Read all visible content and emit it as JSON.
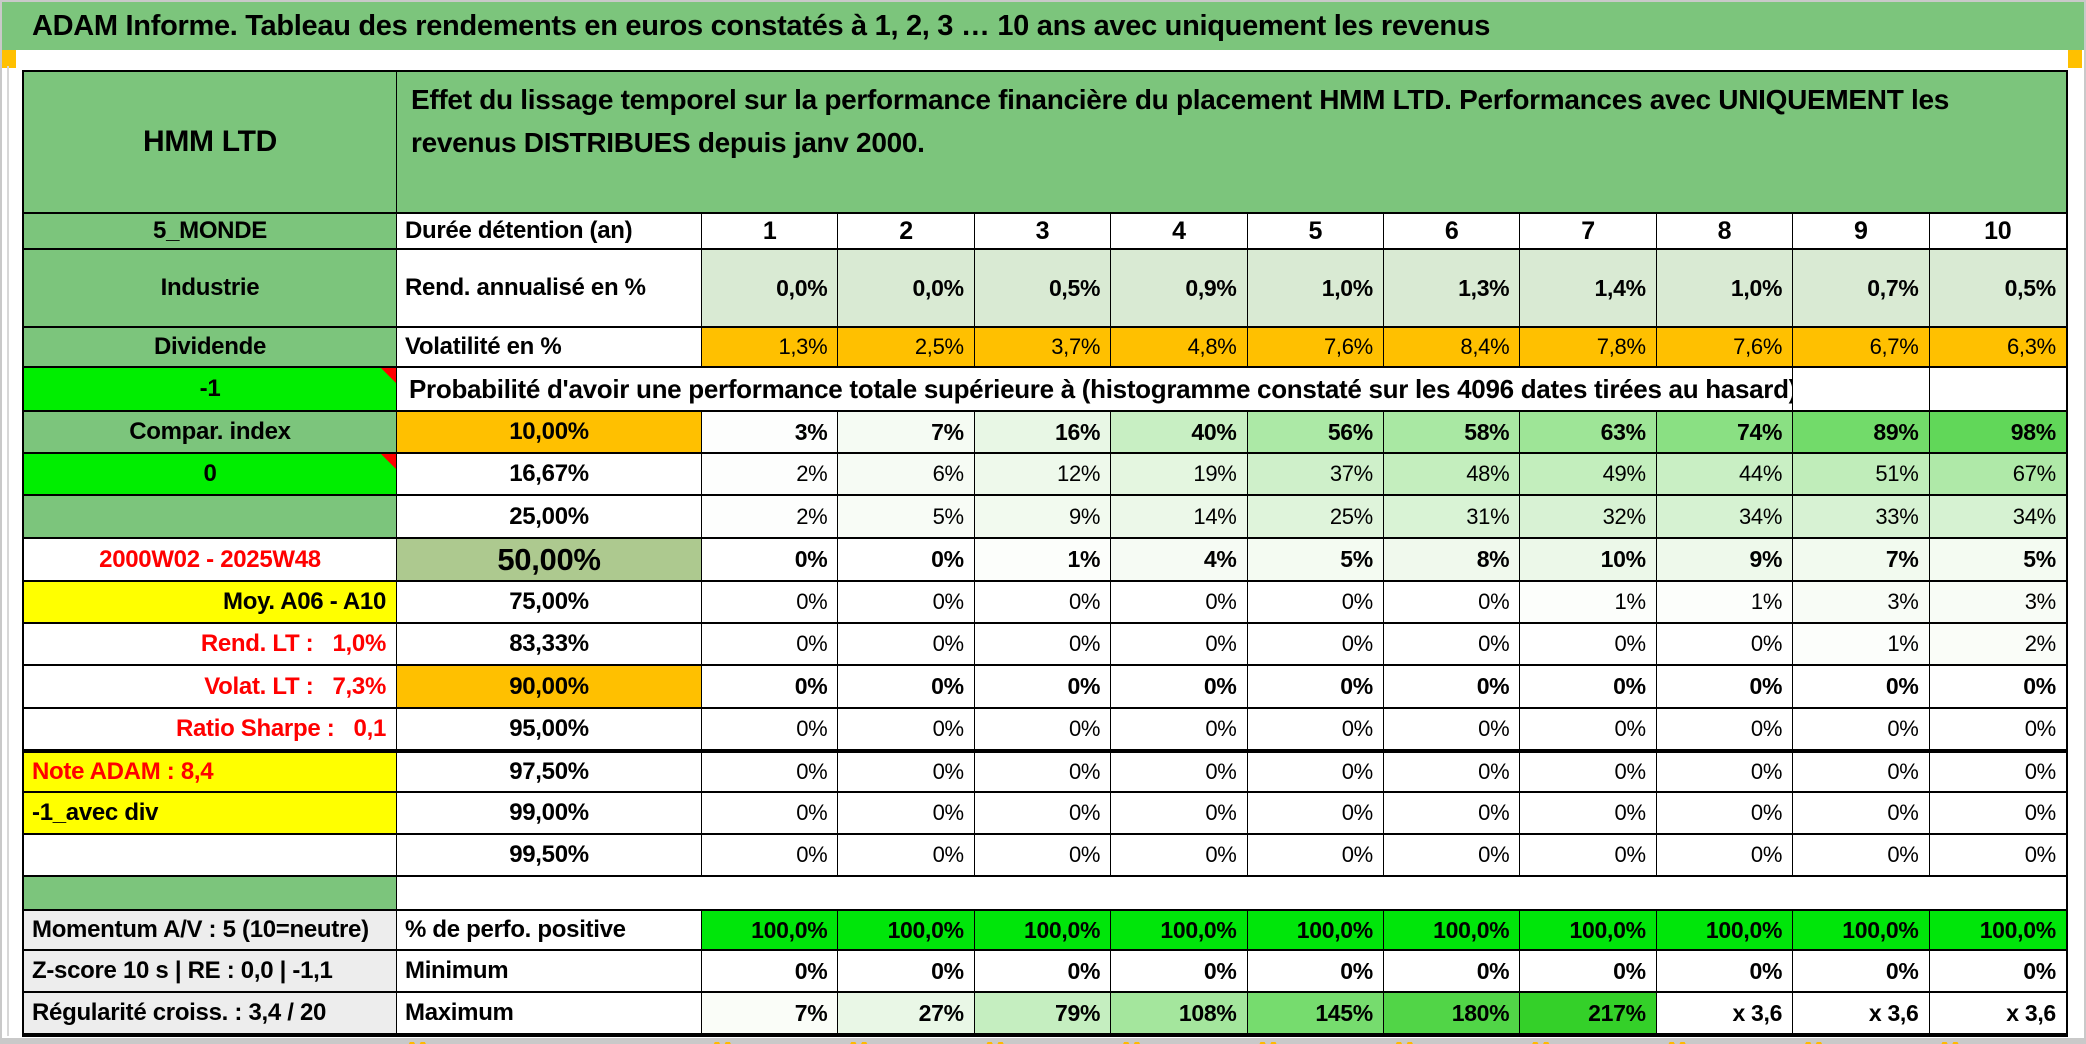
{
  "banner": {
    "title": "ADAM Informe. Tableau des rendements en euros constatés à 1, 2, 3 … 10 ans avec uniquement les revenus"
  },
  "colors": {
    "banner_green": "#7CC57C",
    "label_green": "#7CC57C",
    "bright_green": "#00EE00",
    "perfo_green": "#00E60A",
    "orange": "#FFC000",
    "yellow": "#FFFF00",
    "olive": "#ADC98F",
    "gray_label": "#EDEDED",
    "light_green_fill": "#D9EAD3",
    "red_text": "#FF0000",
    "mark_orange": "#FFB900"
  },
  "hidden_row_marks": "▲▲",
  "table": {
    "corner_title": "HMM LTD",
    "description": "Effet du lissage temporel sur la performance financière du placement HMM LTD. Performances avec UNIQUEMENT les revenus DISTRIBUES depuis janv 2000.",
    "duration": {
      "side": "5_MONDE",
      "label": "Durée détention (an)",
      "years": [
        "1",
        "2",
        "3",
        "4",
        "5",
        "6",
        "7",
        "8",
        "9",
        "10"
      ]
    },
    "rows": [
      {
        "id": "rend",
        "side": "Industrie",
        "side_style": "green",
        "label": "Rend. annualisé en %",
        "label_style": "left",
        "bold": true,
        "values": [
          "0,0%",
          "0,0%",
          "0,5%",
          "0,9%",
          "1,0%",
          "1,3%",
          "1,4%",
          "1,0%",
          "0,7%",
          "0,5%"
        ],
        "fills": [
          "#D9EAD3",
          "#D9EAD3",
          "#D9EAD3",
          "#D9EAD3",
          "#D9EAD3",
          "#D9EAD3",
          "#D9EAD3",
          "#D9EAD3",
          "#D9EAD3",
          "#D9EAD3"
        ]
      },
      {
        "id": "volat",
        "side": "Dividende",
        "side_style": "green",
        "label": "Volatilité en %",
        "label_style": "left",
        "bold": false,
        "values": [
          "1,3%",
          "2,5%",
          "3,7%",
          "4,8%",
          "7,6%",
          "8,4%",
          "7,8%",
          "7,6%",
          "6,7%",
          "6,3%"
        ],
        "fills": [
          "#FFC000",
          "#FFC000",
          "#FFC000",
          "#FFC000",
          "#FFC000",
          "#FFC000",
          "#FFC000",
          "#FFC000",
          "#FFC000",
          "#FFC000"
        ]
      },
      {
        "id": "proba",
        "side": "-1",
        "side_style": "bright",
        "marker": true,
        "merged_text": "Probabilité d'avoir une performance totale supérieure à (histogramme constaté sur les 4096 dates tirées au hasard)"
      },
      {
        "id": "p10",
        "side": "Compar. index",
        "side_style": "green",
        "label": "10,00%",
        "label_style": "orange",
        "bold": true,
        "values": [
          "3%",
          "7%",
          "16%",
          "40%",
          "56%",
          "58%",
          "63%",
          "74%",
          "89%",
          "98%"
        ],
        "fills": [
          "#FDFEFD",
          "#F5FBF3",
          "#E8F7E5",
          "#C8EFC3",
          "#ACE9A6",
          "#A9E8A3",
          "#9EE597",
          "#8AE083",
          "#72DB6A",
          "#61D759"
        ]
      },
      {
        "id": "p1667",
        "side": "0",
        "side_style": "bright",
        "marker": true,
        "label": "16,67%",
        "label_style": "center",
        "bold": false,
        "values": [
          "2%",
          "6%",
          "12%",
          "19%",
          "37%",
          "48%",
          "49%",
          "44%",
          "51%",
          "67%"
        ],
        "fills": [
          "#FDFEFD",
          "#F6FBF4",
          "#EEF9EB",
          "#E4F6E0",
          "#CFF0CA",
          "#C4EEBE",
          "#C3EEBD",
          "#C9EFC4",
          "#C0EDBA",
          "#AFE9A8"
        ]
      },
      {
        "id": "p25",
        "side": "",
        "side_style": "green",
        "label": "25,00%",
        "label_style": "center",
        "bold": false,
        "values": [
          "2%",
          "5%",
          "9%",
          "14%",
          "25%",
          "31%",
          "32%",
          "34%",
          "33%",
          "34%"
        ],
        "fills": [
          "#FDFEFD",
          "#F8FCF6",
          "#F2FAEF",
          "#ECF8E9",
          "#DFF4DB",
          "#D9F3D5",
          "#D8F2D4",
          "#D6F2D2",
          "#D7F2D3",
          "#D6F2D2"
        ]
      },
      {
        "id": "p50",
        "side": "2000W02 - 2025W48",
        "side_style": "red-center",
        "label": "50,00%",
        "label_style": "olive",
        "bold": true,
        "values": [
          "0%",
          "0%",
          "1%",
          "4%",
          "5%",
          "8%",
          "10%",
          "9%",
          "7%",
          "5%"
        ],
        "fills": [
          "#FFFFFF",
          "#FFFFFF",
          "#FCFEFB",
          "#F6FBF4",
          "#F4FBF2",
          "#F0F9ED",
          "#ECF8E9",
          "#EEF9EB",
          "#F2FAEF",
          "#F4FBF2"
        ]
      },
      {
        "id": "p75",
        "side": "Moy. A06 - A10",
        "side_style": "yellow-right",
        "label": "75,00%",
        "label_style": "center",
        "bold": false,
        "values": [
          "0%",
          "0%",
          "0%",
          "0%",
          "0%",
          "0%",
          "1%",
          "1%",
          "3%",
          "3%"
        ],
        "fills": [
          "#FFFFFF",
          "#FFFFFF",
          "#FFFFFF",
          "#FFFFFF",
          "#FFFFFF",
          "#FFFFFF",
          "#FCFEFB",
          "#FCFEFB",
          "#F8FCF6",
          "#F8FCF6"
        ]
      },
      {
        "id": "p8333",
        "side": "Rend. LT :   1,0%",
        "side_style": "red-right",
        "label": "83,33%",
        "label_style": "center",
        "bold": false,
        "values": [
          "0%",
          "0%",
          "0%",
          "0%",
          "0%",
          "0%",
          "0%",
          "0%",
          "1%",
          "2%"
        ],
        "fills": [
          "#FFFFFF",
          "#FFFFFF",
          "#FFFFFF",
          "#FFFFFF",
          "#FFFFFF",
          "#FFFFFF",
          "#FFFFFF",
          "#FFFFFF",
          "#FCFEFB",
          "#FAFDF8"
        ]
      },
      {
        "id": "p90",
        "side": "Volat. LT :   7,3%",
        "side_style": "red-right",
        "label": "90,00%",
        "label_style": "orange",
        "bold": true,
        "values": [
          "0%",
          "0%",
          "0%",
          "0%",
          "0%",
          "0%",
          "0%",
          "0%",
          "0%",
          "0%"
        ],
        "fills": [
          "#FFFFFF",
          "#FFFFFF",
          "#FFFFFF",
          "#FFFFFF",
          "#FFFFFF",
          "#FFFFFF",
          "#FFFFFF",
          "#FFFFFF",
          "#FFFFFF",
          "#FFFFFF"
        ]
      },
      {
        "id": "p95",
        "side": "Ratio Sharpe :   0,1",
        "side_style": "red-right",
        "label": "95,00%",
        "label_style": "center",
        "bold": false,
        "values": [
          "0%",
          "0%",
          "0%",
          "0%",
          "0%",
          "0%",
          "0%",
          "0%",
          "0%",
          "0%"
        ],
        "fills": [
          "#FFFFFF",
          "#FFFFFF",
          "#FFFFFF",
          "#FFFFFF",
          "#FFFFFF",
          "#FFFFFF",
          "#FFFFFF",
          "#FFFFFF",
          "#FFFFFF",
          "#FFFFFF"
        ]
      },
      {
        "id": "p975",
        "side": "Note ADAM : 8,4",
        "side_style": "yellow-left-red",
        "label": "97,50%",
        "label_style": "center",
        "bold": false,
        "thick_top": true,
        "values": [
          "0%",
          "0%",
          "0%",
          "0%",
          "0%",
          "0%",
          "0%",
          "0%",
          "0%",
          "0%"
        ],
        "fills": [
          "#FFFFFF",
          "#FFFFFF",
          "#FFFFFF",
          "#FFFFFF",
          "#FFFFFF",
          "#FFFFFF",
          "#FFFFFF",
          "#FFFFFF",
          "#FFFFFF",
          "#FFFFFF"
        ]
      },
      {
        "id": "p99",
        "side": "-1_avec div",
        "side_style": "yellow-left",
        "label": "99,00%",
        "label_style": "center",
        "bold": false,
        "values": [
          "0%",
          "0%",
          "0%",
          "0%",
          "0%",
          "0%",
          "0%",
          "0%",
          "0%",
          "0%"
        ],
        "fills": [
          "#FFFFFF",
          "#FFFFFF",
          "#FFFFFF",
          "#FFFFFF",
          "#FFFFFF",
          "#FFFFFF",
          "#FFFFFF",
          "#FFFFFF",
          "#FFFFFF",
          "#FFFFFF"
        ]
      },
      {
        "id": "p995",
        "side": "",
        "side_style": "plain",
        "label": "99,50%",
        "label_style": "center",
        "bold": false,
        "values": [
          "0%",
          "0%",
          "0%",
          "0%",
          "0%",
          "0%",
          "0%",
          "0%",
          "0%",
          "0%"
        ],
        "fills": [
          "#FFFFFF",
          "#FFFFFF",
          "#FFFFFF",
          "#FFFFFF",
          "#FFFFFF",
          "#FFFFFF",
          "#FFFFFF",
          "#FFFFFF",
          "#FFFFFF",
          "#FFFFFF"
        ]
      },
      {
        "id": "gap",
        "gap": true
      },
      {
        "id": "pos",
        "side": "Momentum A/V : 5 (10=neutre)",
        "side_style": "gray-left",
        "label": "% de perfo. positive",
        "label_style": "left",
        "bold": true,
        "thick_top": true,
        "values": [
          "100,0%",
          "100,0%",
          "100,0%",
          "100,0%",
          "100,0%",
          "100,0%",
          "100,0%",
          "100,0%",
          "100,0%",
          "100,0%"
        ],
        "fills": [
          "#00E60A",
          "#00E60A",
          "#00E60A",
          "#00E60A",
          "#00E60A",
          "#00E60A",
          "#00E60A",
          "#00E60A",
          "#00E60A",
          "#00E60A"
        ]
      },
      {
        "id": "min",
        "side": "Z-score 10 s | RE : 0,0 | -1,1",
        "side_style": "gray-left",
        "label": "Minimum",
        "label_style": "left",
        "bold": true,
        "values": [
          "0%",
          "0%",
          "0%",
          "0%",
          "0%",
          "0%",
          "0%",
          "0%",
          "0%",
          "0%"
        ],
        "fills": [
          "#FFFFFF",
          "#FFFFFF",
          "#FFFFFF",
          "#FFFFFF",
          "#FFFFFF",
          "#FFFFFF",
          "#FFFFFF",
          "#FFFFFF",
          "#FFFFFF",
          "#FFFFFF"
        ]
      },
      {
        "id": "max",
        "side": "Régularité croiss. : 3,4 / 20",
        "side_style": "gray-left",
        "label": "Maximum",
        "label_style": "left",
        "bold": true,
        "values": [
          "7%",
          "27%",
          "79%",
          "108%",
          "145%",
          "180%",
          "217%",
          "x 3,6",
          "x 3,6",
          "x 3,6"
        ],
        "fills": [
          "#FAFDF8",
          "#E9F7E6",
          "#C5EEC0",
          "#A4E69D",
          "#76DC6E",
          "#51D547",
          "#34D029",
          "#FFFFFF",
          "#FFFFFF",
          "#FFFFFF"
        ]
      }
    ]
  }
}
